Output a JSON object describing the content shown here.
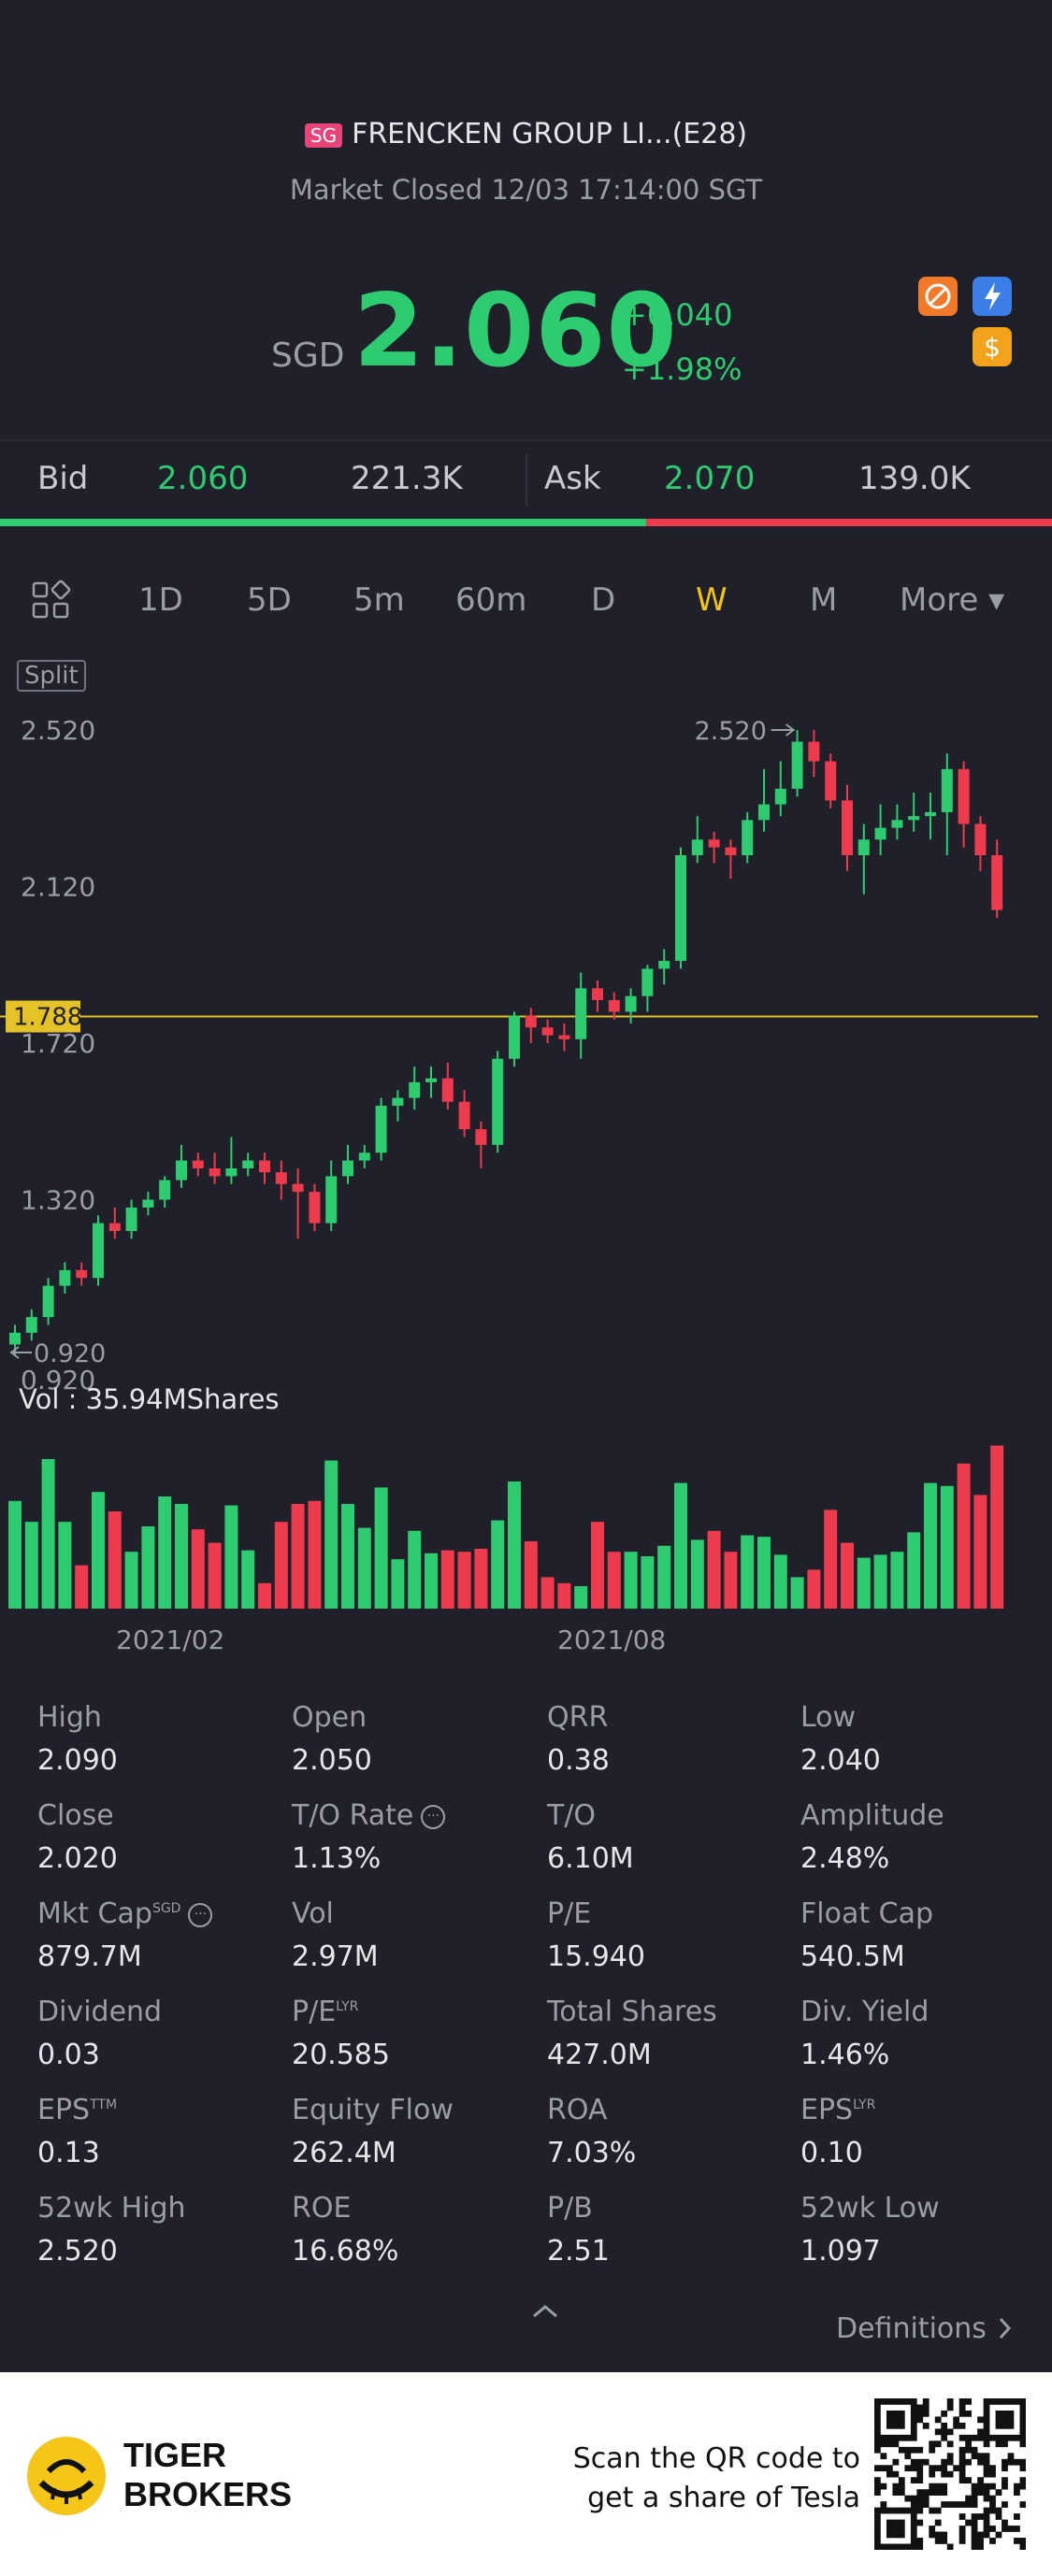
{
  "header": {
    "market_badge": "SG",
    "stock_name": "FRENCKEN GROUP LI...(E28)",
    "status": "Market Closed 12/03 17:14:00 SGT",
    "currency": "SGD",
    "price": "2.060",
    "change": "+0.040",
    "change_pct": "+1.98%"
  },
  "bidask": {
    "bid_label": "Bid",
    "bid_price": "2.060",
    "bid_size": "221.3K",
    "ask_label": "Ask",
    "ask_price": "2.070",
    "ask_size": "139.0K",
    "bid_ratio": 0.614
  },
  "tabs": {
    "items": [
      "1D",
      "5D",
      "5m",
      "60m",
      "D",
      "W",
      "M"
    ],
    "active": "W",
    "more": "More ▾"
  },
  "chart": {
    "split_label": "Split",
    "y_ticks": [
      "2.520",
      "2.120",
      "1.720",
      "1.320",
      "0.920"
    ],
    "max_marker": "2.520",
    "min_marker": "0.920",
    "current_line_label": "1.788",
    "vol_label": "Vol  : 35.94MShares",
    "x_ticks": [
      "2021/02",
      "2021/08"
    ]
  },
  "chart_data": {
    "type": "candlestick",
    "ylim": [
      0.92,
      2.52
    ],
    "current_line": 1.788,
    "colors": {
      "up": "#2ecc71",
      "down": "#ee3a4d"
    },
    "candles": [
      [
        0.95,
        0.98,
        0.92,
        1.0
      ],
      [
        0.98,
        1.02,
        0.96,
        1.04
      ],
      [
        1.02,
        1.1,
        1.0,
        1.12
      ],
      [
        1.1,
        1.14,
        1.08,
        1.16
      ],
      [
        1.14,
        1.12,
        1.1,
        1.16
      ],
      [
        1.12,
        1.26,
        1.1,
        1.28
      ],
      [
        1.26,
        1.24,
        1.22,
        1.3
      ],
      [
        1.24,
        1.3,
        1.22,
        1.32
      ],
      [
        1.3,
        1.32,
        1.28,
        1.34
      ],
      [
        1.32,
        1.37,
        1.3,
        1.38
      ],
      [
        1.37,
        1.42,
        1.35,
        1.46
      ],
      [
        1.42,
        1.4,
        1.38,
        1.44
      ],
      [
        1.4,
        1.38,
        1.36,
        1.44
      ],
      [
        1.38,
        1.4,
        1.36,
        1.48
      ],
      [
        1.4,
        1.42,
        1.38,
        1.44
      ],
      [
        1.42,
        1.39,
        1.36,
        1.44
      ],
      [
        1.39,
        1.36,
        1.32,
        1.42
      ],
      [
        1.36,
        1.34,
        1.22,
        1.4
      ],
      [
        1.34,
        1.26,
        1.24,
        1.36
      ],
      [
        1.26,
        1.38,
        1.24,
        1.42
      ],
      [
        1.38,
        1.42,
        1.36,
        1.46
      ],
      [
        1.42,
        1.44,
        1.4,
        1.46
      ],
      [
        1.44,
        1.56,
        1.42,
        1.58
      ],
      [
        1.56,
        1.58,
        1.52,
        1.6
      ],
      [
        1.58,
        1.62,
        1.55,
        1.66
      ],
      [
        1.62,
        1.63,
        1.58,
        1.66
      ],
      [
        1.63,
        1.57,
        1.55,
        1.67
      ],
      [
        1.57,
        1.5,
        1.48,
        1.6
      ],
      [
        1.5,
        1.46,
        1.4,
        1.52
      ],
      [
        1.46,
        1.68,
        1.44,
        1.7
      ],
      [
        1.68,
        1.79,
        1.66,
        1.8
      ],
      [
        1.79,
        1.76,
        1.72,
        1.81
      ],
      [
        1.76,
        1.74,
        1.72,
        1.78
      ],
      [
        1.74,
        1.73,
        1.7,
        1.77
      ],
      [
        1.73,
        1.86,
        1.68,
        1.9
      ],
      [
        1.86,
        1.83,
        1.8,
        1.88
      ],
      [
        1.83,
        1.8,
        1.78,
        1.85
      ],
      [
        1.8,
        1.84,
        1.77,
        1.86
      ],
      [
        1.84,
        1.91,
        1.8,
        1.92
      ],
      [
        1.91,
        1.93,
        1.87,
        1.96
      ],
      [
        1.93,
        2.2,
        1.91,
        2.22
      ],
      [
        2.2,
        2.24,
        2.18,
        2.3
      ],
      [
        2.24,
        2.22,
        2.18,
        2.26
      ],
      [
        2.22,
        2.2,
        2.14,
        2.24
      ],
      [
        2.2,
        2.29,
        2.18,
        2.31
      ],
      [
        2.29,
        2.33,
        2.26,
        2.42
      ],
      [
        2.33,
        2.37,
        2.3,
        2.44
      ],
      [
        2.37,
        2.49,
        2.35,
        2.52
      ],
      [
        2.49,
        2.44,
        2.4,
        2.52
      ],
      [
        2.44,
        2.34,
        2.32,
        2.46
      ],
      [
        2.34,
        2.2,
        2.16,
        2.38
      ],
      [
        2.2,
        2.24,
        2.1,
        2.28
      ],
      [
        2.24,
        2.27,
        2.2,
        2.33
      ],
      [
        2.27,
        2.29,
        2.24,
        2.33
      ],
      [
        2.29,
        2.3,
        2.26,
        2.36
      ],
      [
        2.3,
        2.31,
        2.24,
        2.36
      ],
      [
        2.31,
        2.42,
        2.2,
        2.46
      ],
      [
        2.42,
        2.28,
        2.22,
        2.44
      ],
      [
        2.28,
        2.2,
        2.16,
        2.3
      ],
      [
        2.2,
        2.06,
        2.04,
        2.24
      ]
    ],
    "volumes": [
      0.72,
      0.58,
      1.0,
      0.58,
      0.29,
      0.78,
      0.65,
      0.38,
      0.55,
      0.75,
      0.7,
      0.53,
      0.44,
      0.69,
      0.39,
      0.17,
      0.58,
      0.7,
      0.72,
      0.99,
      0.7,
      0.54,
      0.81,
      0.33,
      0.52,
      0.37,
      0.39,
      0.38,
      0.4,
      0.59,
      0.85,
      0.45,
      0.21,
      0.17,
      0.15,
      0.58,
      0.38,
      0.38,
      0.35,
      0.42,
      0.84,
      0.46,
      0.52,
      0.38,
      0.49,
      0.48,
      0.36,
      0.21,
      0.26,
      0.66,
      0.44,
      0.34,
      0.36,
      0.38,
      0.51,
      0.84,
      0.82,
      0.97,
      0.76,
      1.09
    ]
  },
  "stats": [
    {
      "label": "High",
      "value": "2.090"
    },
    {
      "label": "Open",
      "value": "2.050"
    },
    {
      "label": "QRR",
      "value": "0.38"
    },
    {
      "label": "Low",
      "value": "2.040"
    },
    {
      "label": "Close",
      "value": "2.020"
    },
    {
      "label": "T/O Rate",
      "value": "1.13%"
    },
    {
      "label": "T/O",
      "value": "6.10M"
    },
    {
      "label": "Amplitude",
      "value": "2.48%"
    },
    {
      "label": "Mkt Cap",
      "value": "879.7M"
    },
    {
      "label": "Vol",
      "value": "2.97M"
    },
    {
      "label": "P/E",
      "value": "15.940"
    },
    {
      "label": "Float Cap",
      "value": "540.5M"
    },
    {
      "label": "Dividend",
      "value": "0.03"
    },
    {
      "label": "P/E",
      "value": "20.585"
    },
    {
      "label": "Total Shares",
      "value": "427.0M"
    },
    {
      "label": "Div. Yield",
      "value": "1.46%"
    },
    {
      "label": "EPS",
      "value": "0.13"
    },
    {
      "label": "Equity Flow",
      "value": "262.4M"
    },
    {
      "label": "ROA",
      "value": "7.03%"
    },
    {
      "label": "EPS",
      "value": "0.10"
    },
    {
      "label": "52wk High",
      "value": "2.520"
    },
    {
      "label": "ROE",
      "value": "16.68%"
    },
    {
      "label": "P/B",
      "value": "2.51"
    },
    {
      "label": "52wk Low",
      "value": "1.097"
    }
  ],
  "stat_sups": {
    "mkt_cap": "SGD",
    "pe_lyr": "LYR",
    "eps_ttm": "TTM",
    "eps_lyr": "LYR"
  },
  "definitions": "Definitions",
  "footer": {
    "brand_line1": "TIGER",
    "brand_line2": "BROKERS",
    "promo_line1": "Scan the QR code to",
    "promo_line2": "get a share of Tesla"
  }
}
